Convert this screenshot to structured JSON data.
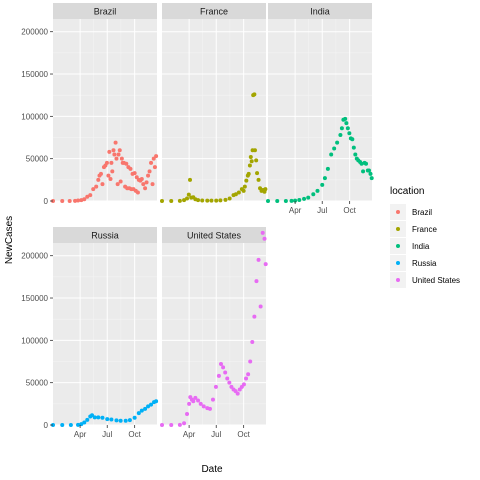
{
  "chart_data": {
    "type": "scatter",
    "faceted_by": "location",
    "xlabel": "Date",
    "ylabel": "NewCases",
    "x_range": [
      "2020-01-01",
      "2020-12-15"
    ],
    "ylim": [
      0,
      215000
    ],
    "yticks": [
      0,
      50000,
      100000,
      150000,
      200000
    ],
    "ytick_labels": [
      "0",
      "50000",
      "100000",
      "150000",
      "200000"
    ],
    "xticks": [
      "2020-04-01",
      "2020-07-01",
      "2020-10-01"
    ],
    "xtick_labels": [
      "Apr",
      "Jul",
      "Oct"
    ],
    "grid": true,
    "legend": {
      "title": "location",
      "position": "right",
      "entries": [
        "Brazil",
        "France",
        "India",
        "Russia",
        "United States"
      ]
    },
    "colors": {
      "Brazil": "#F8766D",
      "France": "#A3A500",
      "India": "#00BF7D",
      "Russia": "#00B0F6",
      "United States": "#E76BF3"
    },
    "series": [
      {
        "name": "Brazil",
        "points": [
          [
            "2020-01-01",
            0
          ],
          [
            "2020-02-01",
            0
          ],
          [
            "2020-02-26",
            0
          ],
          [
            "2020-03-15",
            100
          ],
          [
            "2020-03-25",
            600
          ],
          [
            "2020-04-05",
            1000
          ],
          [
            "2020-04-15",
            2000
          ],
          [
            "2020-04-25",
            5000
          ],
          [
            "2020-05-05",
            7000
          ],
          [
            "2020-05-15",
            14000
          ],
          [
            "2020-05-25",
            17000
          ],
          [
            "2020-06-01",
            25000
          ],
          [
            "2020-06-05",
            30000
          ],
          [
            "2020-06-10",
            32000
          ],
          [
            "2020-06-15",
            20000
          ],
          [
            "2020-06-20",
            40000
          ],
          [
            "2020-06-25",
            42000
          ],
          [
            "2020-06-30",
            45000
          ],
          [
            "2020-07-05",
            30000
          ],
          [
            "2020-07-08",
            58000
          ],
          [
            "2020-07-12",
            26000
          ],
          [
            "2020-07-15",
            45000
          ],
          [
            "2020-07-18",
            35000
          ],
          [
            "2020-07-22",
            60000
          ],
          [
            "2020-07-25",
            55000
          ],
          [
            "2020-07-29",
            69000
          ],
          [
            "2020-08-01",
            50000
          ],
          [
            "2020-08-05",
            20000
          ],
          [
            "2020-08-08",
            55000
          ],
          [
            "2020-08-12",
            60000
          ],
          [
            "2020-08-15",
            23000
          ],
          [
            "2020-08-19",
            50000
          ],
          [
            "2020-08-22",
            45000
          ],
          [
            "2020-08-26",
            45000
          ],
          [
            "2020-08-30",
            17000
          ],
          [
            "2020-09-03",
            44000
          ],
          [
            "2020-09-06",
            15000
          ],
          [
            "2020-09-10",
            40000
          ],
          [
            "2020-09-13",
            15000
          ],
          [
            "2020-09-17",
            38000
          ],
          [
            "2020-09-20",
            14000
          ],
          [
            "2020-09-24",
            32000
          ],
          [
            "2020-09-27",
            14000
          ],
          [
            "2020-10-01",
            33000
          ],
          [
            "2020-10-05",
            12000
          ],
          [
            "2020-10-08",
            28000
          ],
          [
            "2020-10-12",
            10000
          ],
          [
            "2020-10-15",
            25000
          ],
          [
            "2020-10-20",
            24000
          ],
          [
            "2020-10-25",
            26000
          ],
          [
            "2020-10-30",
            20000
          ],
          [
            "2020-11-05",
            15000
          ],
          [
            "2020-11-10",
            22000
          ],
          [
            "2020-11-15",
            30000
          ],
          [
            "2020-11-20",
            35000
          ],
          [
            "2020-11-25",
            45000
          ],
          [
            "2020-11-30",
            20000
          ],
          [
            "2020-12-04",
            50000
          ],
          [
            "2020-12-08",
            40000
          ],
          [
            "2020-12-12",
            53000
          ]
        ]
      },
      {
        "name": "France",
        "points": [
          [
            "2020-01-01",
            0
          ],
          [
            "2020-02-01",
            0
          ],
          [
            "2020-03-01",
            100
          ],
          [
            "2020-03-15",
            1000
          ],
          [
            "2020-03-25",
            3000
          ],
          [
            "2020-03-31",
            7500
          ],
          [
            "2020-04-04",
            25000
          ],
          [
            "2020-04-08",
            4000
          ],
          [
            "2020-04-15",
            4500
          ],
          [
            "2020-04-22",
            2000
          ],
          [
            "2020-05-01",
            1000
          ],
          [
            "2020-05-15",
            600
          ],
          [
            "2020-06-01",
            500
          ],
          [
            "2020-06-15",
            400
          ],
          [
            "2020-07-01",
            500
          ],
          [
            "2020-07-15",
            700
          ],
          [
            "2020-08-01",
            1300
          ],
          [
            "2020-08-15",
            3000
          ],
          [
            "2020-08-28",
            7000
          ],
          [
            "2020-09-05",
            8000
          ],
          [
            "2020-09-15",
            10000
          ],
          [
            "2020-09-25",
            14000
          ],
          [
            "2020-10-01",
            12000
          ],
          [
            "2020-10-05",
            17000
          ],
          [
            "2020-10-10",
            24000
          ],
          [
            "2020-10-15",
            30000
          ],
          [
            "2020-10-18",
            32000
          ],
          [
            "2020-10-22",
            42000
          ],
          [
            "2020-10-25",
            52000
          ],
          [
            "2020-10-28",
            47000
          ],
          [
            "2020-10-31",
            60000
          ],
          [
            "2020-11-02",
            125000
          ],
          [
            "2020-11-06",
            126000
          ],
          [
            "2020-11-08",
            60000
          ],
          [
            "2020-11-12",
            48000
          ],
          [
            "2020-11-15",
            33000
          ],
          [
            "2020-11-20",
            25000
          ],
          [
            "2020-11-25",
            15000
          ],
          [
            "2020-11-30",
            12000
          ],
          [
            "2020-12-05",
            13000
          ],
          [
            "2020-12-10",
            11000
          ],
          [
            "2020-12-13",
            14000
          ]
        ]
      },
      {
        "name": "India",
        "points": [
          [
            "2020-01-01",
            0
          ],
          [
            "2020-02-01",
            0
          ],
          [
            "2020-03-01",
            0
          ],
          [
            "2020-03-20",
            100
          ],
          [
            "2020-04-01",
            400
          ],
          [
            "2020-04-15",
            1200
          ],
          [
            "2020-05-01",
            2500
          ],
          [
            "2020-05-15",
            4000
          ],
          [
            "2020-06-01",
            8000
          ],
          [
            "2020-06-15",
            12000
          ],
          [
            "2020-07-01",
            19000
          ],
          [
            "2020-07-10",
            27000
          ],
          [
            "2020-07-20",
            38000
          ],
          [
            "2020-07-31",
            55000
          ],
          [
            "2020-08-10",
            62000
          ],
          [
            "2020-08-20",
            69000
          ],
          [
            "2020-08-31",
            78000
          ],
          [
            "2020-09-05",
            86000
          ],
          [
            "2020-09-10",
            96000
          ],
          [
            "2020-09-16",
            97000
          ],
          [
            "2020-09-20",
            92000
          ],
          [
            "2020-09-25",
            86000
          ],
          [
            "2020-09-30",
            80000
          ],
          [
            "2020-10-05",
            74000
          ],
          [
            "2020-10-10",
            73000
          ],
          [
            "2020-10-15",
            63000
          ],
          [
            "2020-10-20",
            55000
          ],
          [
            "2020-10-25",
            50000
          ],
          [
            "2020-10-30",
            48000
          ],
          [
            "2020-11-05",
            46000
          ],
          [
            "2020-11-10",
            44000
          ],
          [
            "2020-11-15",
            35000
          ],
          [
            "2020-11-20",
            45000
          ],
          [
            "2020-11-25",
            44000
          ],
          [
            "2020-12-01",
            36000
          ],
          [
            "2020-12-05",
            36000
          ],
          [
            "2020-12-10",
            32000
          ],
          [
            "2020-12-14",
            27000
          ]
        ]
      },
      {
        "name": "Russia",
        "points": [
          [
            "2020-01-01",
            0
          ],
          [
            "2020-02-01",
            0
          ],
          [
            "2020-03-01",
            0
          ],
          [
            "2020-03-25",
            200
          ],
          [
            "2020-04-05",
            1000
          ],
          [
            "2020-04-15",
            3000
          ],
          [
            "2020-04-25",
            6000
          ],
          [
            "2020-05-05",
            10000
          ],
          [
            "2020-05-11",
            11500
          ],
          [
            "2020-05-20",
            9000
          ],
          [
            "2020-06-01",
            9000
          ],
          [
            "2020-06-15",
            8500
          ],
          [
            "2020-07-01",
            7000
          ],
          [
            "2020-07-15",
            6500
          ],
          [
            "2020-08-01",
            5500
          ],
          [
            "2020-08-15",
            5000
          ],
          [
            "2020-09-01",
            5000
          ],
          [
            "2020-09-15",
            5800
          ],
          [
            "2020-10-01",
            8500
          ],
          [
            "2020-10-15",
            14000
          ],
          [
            "2020-10-25",
            17000
          ],
          [
            "2020-11-05",
            19000
          ],
          [
            "2020-11-15",
            22000
          ],
          [
            "2020-11-25",
            24000
          ],
          [
            "2020-12-05",
            27000
          ],
          [
            "2020-12-12",
            28000
          ]
        ]
      },
      {
        "name": "United States",
        "points": [
          [
            "2020-01-01",
            0
          ],
          [
            "2020-02-01",
            0
          ],
          [
            "2020-03-01",
            100
          ],
          [
            "2020-03-15",
            2000
          ],
          [
            "2020-03-25",
            13000
          ],
          [
            "2020-04-01",
            25000
          ],
          [
            "2020-04-05",
            33000
          ],
          [
            "2020-04-10",
            30000
          ],
          [
            "2020-04-15",
            28000
          ],
          [
            "2020-04-22",
            32000
          ],
          [
            "2020-05-01",
            29000
          ],
          [
            "2020-05-10",
            25000
          ],
          [
            "2020-05-20",
            22000
          ],
          [
            "2020-06-01",
            20000
          ],
          [
            "2020-06-10",
            19000
          ],
          [
            "2020-06-20",
            30000
          ],
          [
            "2020-06-30",
            45000
          ],
          [
            "2020-07-10",
            58000
          ],
          [
            "2020-07-17",
            72000
          ],
          [
            "2020-07-24",
            68000
          ],
          [
            "2020-07-31",
            62000
          ],
          [
            "2020-08-07",
            55000
          ],
          [
            "2020-08-14",
            50000
          ],
          [
            "2020-08-21",
            45000
          ],
          [
            "2020-08-28",
            42000
          ],
          [
            "2020-09-04",
            40000
          ],
          [
            "2020-09-11",
            37000
          ],
          [
            "2020-09-18",
            42000
          ],
          [
            "2020-09-25",
            45000
          ],
          [
            "2020-10-02",
            48000
          ],
          [
            "2020-10-09",
            55000
          ],
          [
            "2020-10-16",
            60000
          ],
          [
            "2020-10-23",
            75000
          ],
          [
            "2020-10-30",
            98000
          ],
          [
            "2020-11-06",
            128000
          ],
          [
            "2020-11-13",
            170000
          ],
          [
            "2020-11-20",
            195000
          ],
          [
            "2020-11-27",
            140000
          ],
          [
            "2020-12-04",
            227000
          ],
          [
            "2020-12-10",
            220000
          ],
          [
            "2020-12-14",
            190000
          ]
        ]
      }
    ]
  }
}
